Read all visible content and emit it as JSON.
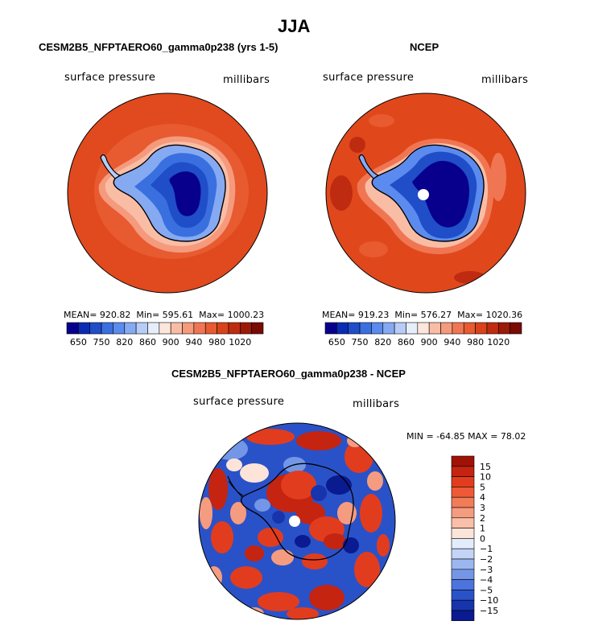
{
  "page": {
    "title": "JJA"
  },
  "chart_data": [
    {
      "type": "heatmap",
      "projection": "south polar stereographic",
      "title": "CESM2B5_NFPTAERO60_gamma0p238 (yrs 1-5)",
      "left_label": "surface pressure",
      "right_label": "millibars",
      "stats": {
        "mean_label": "MEAN=",
        "mean": "920.82",
        "min_label": "Min=",
        "min": "595.61",
        "max_label": "Max=",
        "max": "1000.23"
      },
      "colorbar_ticks": [
        "650",
        "750",
        "820",
        "860",
        "900",
        "940",
        "980",
        "1020"
      ],
      "colors": [
        "#08008c",
        "#0a2bb4",
        "#1f4ec8",
        "#3a6fe0",
        "#5b8bee",
        "#86aaf2",
        "#b7cdf7",
        "#e6eefc",
        "#fde6dc",
        "#f9bda6",
        "#f59a7c",
        "#f07653",
        "#e85a30",
        "#d9431b",
        "#bf2b10",
        "#9c1a08",
        "#7a0a04"
      ],
      "ocean_color": "#e04a1e"
    },
    {
      "type": "heatmap",
      "projection": "south polar stereographic",
      "title": "NCEP",
      "left_label": "surface pressure",
      "right_label": "millibars",
      "stats": {
        "mean_label": "MEAN=",
        "mean": "919.23",
        "min_label": "Min=",
        "min": "576.27",
        "max_label": "Max=",
        "max": "1020.36"
      },
      "colorbar_ticks": [
        "650",
        "750",
        "820",
        "860",
        "900",
        "940",
        "980",
        "1020"
      ],
      "colors": [
        "#08008c",
        "#0a2bb4",
        "#1f4ec8",
        "#3a6fe0",
        "#5b8bee",
        "#86aaf2",
        "#b7cdf7",
        "#e6eefc",
        "#fde6dc",
        "#f9bda6",
        "#f59a7c",
        "#f07653",
        "#e85a30",
        "#d9431b",
        "#bf2b10",
        "#9c1a08",
        "#7a0a04"
      ],
      "ocean_color": "#e0481c"
    },
    {
      "type": "heatmap",
      "projection": "south polar stereographic",
      "title": "CESM2B5_NFPTAERO60_gamma0p238 - NCEP",
      "left_label": "surface pressure",
      "right_label": "millibars",
      "stats": {
        "min_label": "MIN =",
        "min": "-64.85",
        "max_label": "MAX =",
        "max": "78.02"
      },
      "colorbar_ticks": [
        "15",
        "10",
        "5",
        "4",
        "3",
        "2",
        "1",
        "0",
        "−1",
        "−2",
        "−3",
        "−4",
        "−5",
        "−10",
        "−15"
      ],
      "colors": [
        "#a01206",
        "#c42410",
        "#e23c1e",
        "#ee5a36",
        "#f27c58",
        "#f59c80",
        "#f9bfa8",
        "#fde4d8",
        "#e3ecfb",
        "#c3d4f6",
        "#9cb7ef",
        "#7396e6",
        "#4d74dc",
        "#2a52c8",
        "#1734ac",
        "#0a1a90"
      ]
    }
  ]
}
